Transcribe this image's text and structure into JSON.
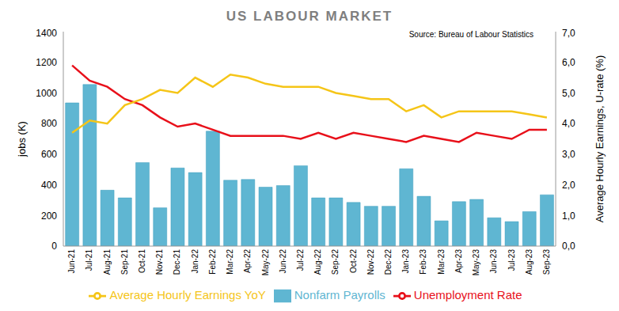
{
  "chart_data": {
    "type": "bar",
    "title": "US LABOUR MARKET",
    "annotation": "Source: Bureau of Labour Statistics",
    "y_label": "jobs (K)",
    "y2_label": "Average Hourly Earnings, U-rate (%)",
    "categories": [
      "Jun-21",
      "Jul-21",
      "Aug-21",
      "Sep-21",
      "Oct-21",
      "Nov-21",
      "Dec-21",
      "Jan-22",
      "Feb-22",
      "Mar-22",
      "Apr-22",
      "May-22",
      "Jun-22",
      "Jul-22",
      "Aug-22",
      "Sep-22",
      "Oct-22",
      "Nov-22",
      "Dec-22",
      "Jan-23",
      "Feb-23",
      "Mar-23",
      "Apr-23",
      "May-23",
      "Jun-23",
      "Jul-23",
      "Aug-23",
      "Sep-23"
    ],
    "series": [
      {
        "name": "Nonfarm Payrolls",
        "type": "bar",
        "color": "#5fb6d2",
        "values": [
          935,
          1055,
          365,
          315,
          545,
          250,
          510,
          480,
          750,
          430,
          435,
          385,
          395,
          525,
          315,
          315,
          285,
          260,
          260,
          505,
          325,
          165,
          290,
          305,
          185,
          160,
          225,
          335
        ]
      },
      {
        "name": "Unemployment Rate",
        "type": "line",
        "axis": "y2",
        "color": "#e8101a",
        "values": [
          5.9,
          5.4,
          5.2,
          4.8,
          4.6,
          4.2,
          3.9,
          4.0,
          3.8,
          3.6,
          3.6,
          3.6,
          3.6,
          3.5,
          3.7,
          3.5,
          3.7,
          3.6,
          3.5,
          3.4,
          3.6,
          3.5,
          3.4,
          3.7,
          3.6,
          3.5,
          3.8,
          3.8
        ]
      },
      {
        "name": "Average Hourly Earnings YoY",
        "type": "line",
        "axis": "y2",
        "color": "#f5c518",
        "values": [
          3.7,
          4.1,
          4.0,
          4.6,
          4.8,
          5.1,
          5.0,
          5.5,
          5.2,
          5.6,
          5.5,
          5.3,
          5.2,
          5.2,
          5.2,
          5.0,
          4.9,
          4.8,
          4.8,
          4.4,
          4.6,
          4.2,
          4.4,
          4.4,
          4.4,
          4.4,
          4.3,
          4.2
        ]
      }
    ],
    "ylim": [
      0,
      1400
    ],
    "yticks": [
      0,
      200,
      400,
      600,
      800,
      1000,
      1200,
      1400
    ],
    "y2lim": [
      0,
      7
    ],
    "y2ticks": [
      {
        "value": 0,
        "label": "0,0"
      },
      {
        "value": 1,
        "label": "1,0"
      },
      {
        "value": 2,
        "label": "2,0"
      },
      {
        "value": 3,
        "label": "3,0"
      },
      {
        "value": 4,
        "label": "4,0"
      },
      {
        "value": 5,
        "label": "5,0"
      },
      {
        "value": 6,
        "label": "6,0"
      },
      {
        "value": 7,
        "label": "7,0"
      }
    ],
    "grid": false,
    "legend": "bottom"
  }
}
